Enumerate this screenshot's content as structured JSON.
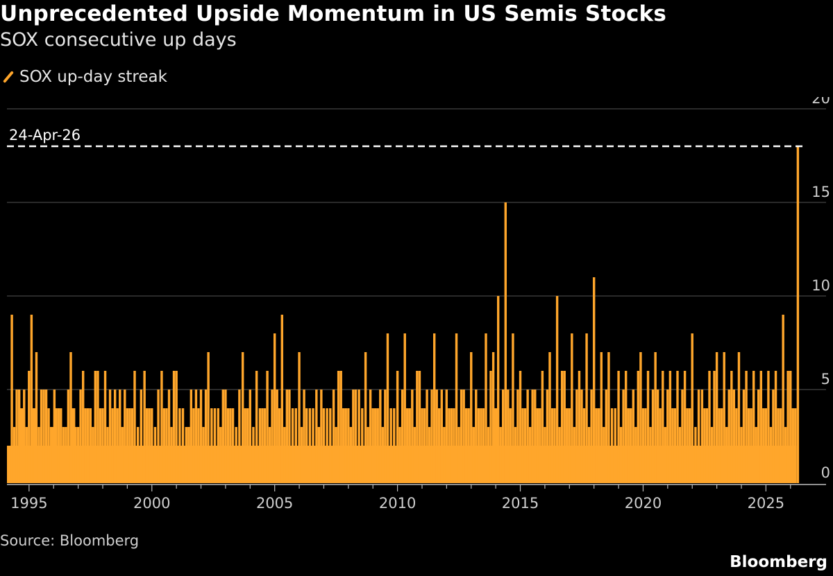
{
  "title": "Unprecedented Upside Momentum in US Semis Stocks",
  "subtitle": "SOX consecutive up days",
  "source": "Source: Bloomberg",
  "brand": "Bloomberg",
  "colors": {
    "series": "#ffa62b",
    "background": "#000000",
    "grid": "#555555",
    "annotation": "#ffffff"
  },
  "chart_data": {
    "type": "bar",
    "title": "Unprecedented Upside Momentum in US Semis Stocks",
    "subtitle": "SOX consecutive up days",
    "xlabel": "",
    "ylabel": "",
    "xlim": [
      1994.1,
      2026.6
    ],
    "ylim": [
      0,
      20
    ],
    "x_ticks": [
      1995,
      2000,
      2005,
      2010,
      2015,
      2020,
      2025
    ],
    "x_tick_labels": [
      "1995",
      "2000",
      "2005",
      "2010",
      "2015",
      "2020",
      "2025"
    ],
    "y_ticks": [
      0,
      5,
      10,
      15,
      20
    ],
    "y_tick_labels": [
      "0",
      "5",
      "10",
      "15",
      "20"
    ],
    "y_axis_side": "right",
    "grid": true,
    "legend_position": "top-left",
    "series": [
      {
        "name": "SOX up-day streak",
        "color": "#ffa62b",
        "x": [
          1994.3,
          1994.6,
          1994.8,
          1995.1,
          1995.3,
          1995.6,
          1995.9,
          1996.1,
          1996.4,
          1996.7,
          1996.9,
          1997.2,
          1997.5,
          1997.8,
          1998.1,
          1998.4,
          1998.7,
          1999.0,
          1999.3,
          1999.7,
          2000.0,
          2000.4,
          2000.7,
          2001.0,
          2001.4,
          2001.7,
          2002.0,
          2002.3,
          2002.7,
          2003.0,
          2003.3,
          2003.7,
          2004.0,
          2004.4,
          2004.7,
          2005.0,
          2005.3,
          2005.6,
          2006.0,
          2006.3,
          2006.7,
          2007.0,
          2007.4,
          2007.7,
          2008.0,
          2008.3,
          2008.7,
          2009.0,
          2009.3,
          2009.6,
          2010.0,
          2010.3,
          2010.6,
          2010.9,
          2011.2,
          2011.5,
          2011.8,
          2012.1,
          2012.4,
          2012.7,
          2013.0,
          2013.3,
          2013.6,
          2013.9,
          2014.1,
          2014.4,
          2014.7,
          2015.0,
          2015.3,
          2015.6,
          2015.9,
          2016.2,
          2016.5,
          2016.8,
          2017.1,
          2017.4,
          2017.7,
          2018.0,
          2018.3,
          2018.6,
          2019.0,
          2019.3,
          2019.6,
          2019.9,
          2020.2,
          2020.5,
          2020.8,
          2021.1,
          2021.4,
          2021.7,
          2022.0,
          2022.4,
          2022.7,
          2023.0,
          2023.3,
          2023.6,
          2023.9,
          2024.2,
          2024.5,
          2024.8,
          2025.1,
          2025.4,
          2025.7,
          2026.0,
          2026.3
        ],
        "values": [
          9,
          5,
          5,
          9,
          7,
          5,
          3,
          4,
          3,
          7,
          3,
          6,
          4,
          6,
          6,
          4,
          5,
          4,
          6,
          6,
          4,
          6,
          5,
          6,
          3,
          4,
          5,
          7,
          4,
          5,
          4,
          7,
          5,
          4,
          6,
          8,
          9,
          5,
          7,
          4,
          5,
          4,
          5,
          6,
          4,
          5,
          7,
          4,
          5,
          8,
          6,
          8,
          5,
          6,
          5,
          8,
          5,
          4,
          8,
          5,
          7,
          4,
          8,
          7,
          10,
          15,
          8,
          6,
          5,
          5,
          6,
          7,
          10,
          6,
          8,
          6,
          8,
          11,
          7,
          7,
          6,
          6,
          5,
          7,
          6,
          7,
          6,
          6,
          6,
          6,
          8,
          5,
          6,
          7,
          7,
          6,
          7,
          6,
          6,
          6,
          6,
          6,
          9,
          6,
          18
        ]
      }
    ],
    "annotations": [
      {
        "label": "24-Apr-26",
        "y": 18,
        "style": "dashed"
      }
    ]
  }
}
